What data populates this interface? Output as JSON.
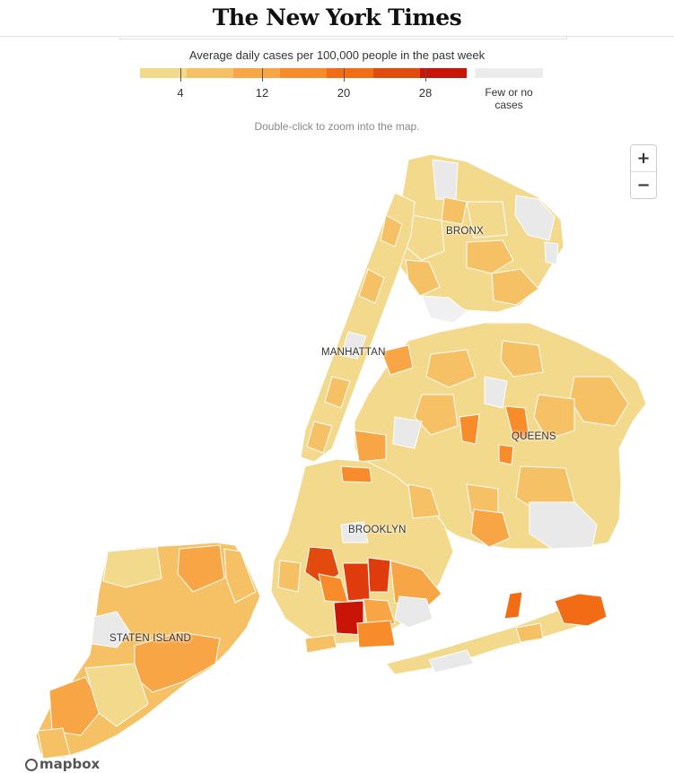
{
  "masthead": {
    "logo": "The New York Times"
  },
  "legend": {
    "title": "Average daily cases per 100,000 people in the past week",
    "scale_colors": [
      "#f2d98a",
      "#f6c065",
      "#f8a645",
      "#f88c2b",
      "#f26b15",
      "#e24a0e",
      "#c91508"
    ],
    "ticks": [
      "4",
      "12",
      "20",
      "28"
    ],
    "no_data_label": "Few or no cases",
    "no_data_color": "#ececec"
  },
  "map": {
    "hint": "Double-click to zoom into the map.",
    "zoom_in": "+",
    "zoom_out": "−",
    "attribution": "mapbox",
    "boroughs": [
      {
        "key": "bronx",
        "label": "BRONX"
      },
      {
        "key": "manhattan",
        "label": "MANHATTAN"
      },
      {
        "key": "queens",
        "label": "QUEENS"
      },
      {
        "key": "brooklyn",
        "label": "BROOKLYN"
      },
      {
        "key": "staten_island",
        "label": "STATEN ISLAND"
      }
    ]
  }
}
